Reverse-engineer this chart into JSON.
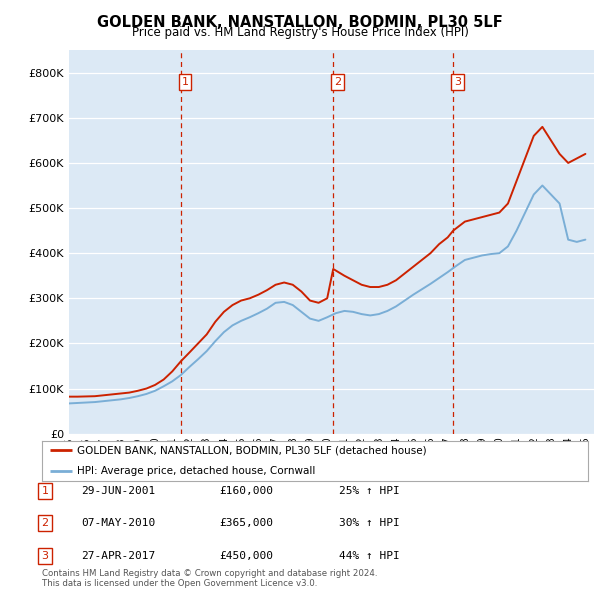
{
  "title": "GOLDEN BANK, NANSTALLON, BODMIN, PL30 5LF",
  "subtitle": "Price paid vs. HM Land Registry's House Price Index (HPI)",
  "bg_color": "#dce9f5",
  "red_line_label": "GOLDEN BANK, NANSTALLON, BODMIN, PL30 5LF (detached house)",
  "blue_line_label": "HPI: Average price, detached house, Cornwall",
  "ylim": [
    0,
    850000
  ],
  "yticks": [
    0,
    100000,
    200000,
    300000,
    400000,
    500000,
    600000,
    700000,
    800000
  ],
  "ytick_labels": [
    "£0",
    "£100K",
    "£200K",
    "£300K",
    "£400K",
    "£500K",
    "£600K",
    "£700K",
    "£800K"
  ],
  "xmin": 1995.0,
  "xmax": 2025.5,
  "transactions": [
    {
      "num": 1,
      "date": "29-JUN-2001",
      "price": "160,000",
      "pct": "25%",
      "x": 2001.49
    },
    {
      "num": 2,
      "date": "07-MAY-2010",
      "price": "365,000",
      "pct": "30%",
      "x": 2010.35
    },
    {
      "num": 3,
      "date": "27-APR-2017",
      "price": "450,000",
      "pct": "44%",
      "x": 2017.32
    }
  ],
  "red_line": {
    "x": [
      1995.0,
      1995.5,
      1996.0,
      1996.5,
      1997.0,
      1997.5,
      1998.0,
      1998.5,
      1999.0,
      1999.5,
      2000.0,
      2000.5,
      2001.0,
      2001.49,
      2002.0,
      2002.5,
      2003.0,
      2003.5,
      2004.0,
      2004.5,
      2005.0,
      2005.5,
      2006.0,
      2006.5,
      2007.0,
      2007.5,
      2008.0,
      2008.5,
      2009.0,
      2009.5,
      2010.0,
      2010.35,
      2011.0,
      2011.5,
      2012.0,
      2012.5,
      2013.0,
      2013.5,
      2014.0,
      2014.5,
      2015.0,
      2015.5,
      2016.0,
      2016.5,
      2017.0,
      2017.32,
      2018.0,
      2018.5,
      2019.0,
      2019.5,
      2020.0,
      2020.5,
      2021.0,
      2021.5,
      2022.0,
      2022.5,
      2023.0,
      2023.5,
      2024.0,
      2024.5,
      2025.0
    ],
    "y": [
      82000,
      82000,
      82500,
      83000,
      85000,
      87000,
      89000,
      91000,
      95000,
      100000,
      108000,
      120000,
      138000,
      160000,
      180000,
      200000,
      220000,
      248000,
      270000,
      285000,
      295000,
      300000,
      308000,
      318000,
      330000,
      335000,
      330000,
      315000,
      295000,
      290000,
      300000,
      365000,
      350000,
      340000,
      330000,
      325000,
      325000,
      330000,
      340000,
      355000,
      370000,
      385000,
      400000,
      420000,
      435000,
      450000,
      470000,
      475000,
      480000,
      485000,
      490000,
      510000,
      560000,
      610000,
      660000,
      680000,
      650000,
      620000,
      600000,
      610000,
      620000
    ]
  },
  "blue_line": {
    "x": [
      1995.0,
      1995.5,
      1996.0,
      1996.5,
      1997.0,
      1997.5,
      1998.0,
      1998.5,
      1999.0,
      1999.5,
      2000.0,
      2000.5,
      2001.0,
      2001.5,
      2002.0,
      2002.5,
      2003.0,
      2003.5,
      2004.0,
      2004.5,
      2005.0,
      2005.5,
      2006.0,
      2006.5,
      2007.0,
      2007.5,
      2008.0,
      2008.5,
      2009.0,
      2009.5,
      2010.0,
      2010.5,
      2011.0,
      2011.5,
      2012.0,
      2012.5,
      2013.0,
      2013.5,
      2014.0,
      2014.5,
      2015.0,
      2015.5,
      2016.0,
      2016.5,
      2017.0,
      2017.5,
      2018.0,
      2018.5,
      2019.0,
      2019.5,
      2020.0,
      2020.5,
      2021.0,
      2021.5,
      2022.0,
      2022.5,
      2023.0,
      2023.5,
      2024.0,
      2024.5,
      2025.0
    ],
    "y": [
      67000,
      68000,
      69000,
      70000,
      72000,
      74000,
      76000,
      79000,
      83000,
      88000,
      95000,
      105000,
      116000,
      130000,
      148000,
      165000,
      183000,
      205000,
      225000,
      240000,
      250000,
      258000,
      267000,
      277000,
      290000,
      292000,
      285000,
      270000,
      255000,
      250000,
      258000,
      267000,
      272000,
      270000,
      265000,
      262000,
      265000,
      272000,
      282000,
      295000,
      308000,
      320000,
      332000,
      345000,
      358000,
      372000,
      385000,
      390000,
      395000,
      398000,
      400000,
      415000,
      450000,
      490000,
      530000,
      550000,
      530000,
      510000,
      430000,
      425000,
      430000
    ]
  },
  "footer": "Contains HM Land Registry data © Crown copyright and database right 2024.\nThis data is licensed under the Open Government Licence v3.0."
}
